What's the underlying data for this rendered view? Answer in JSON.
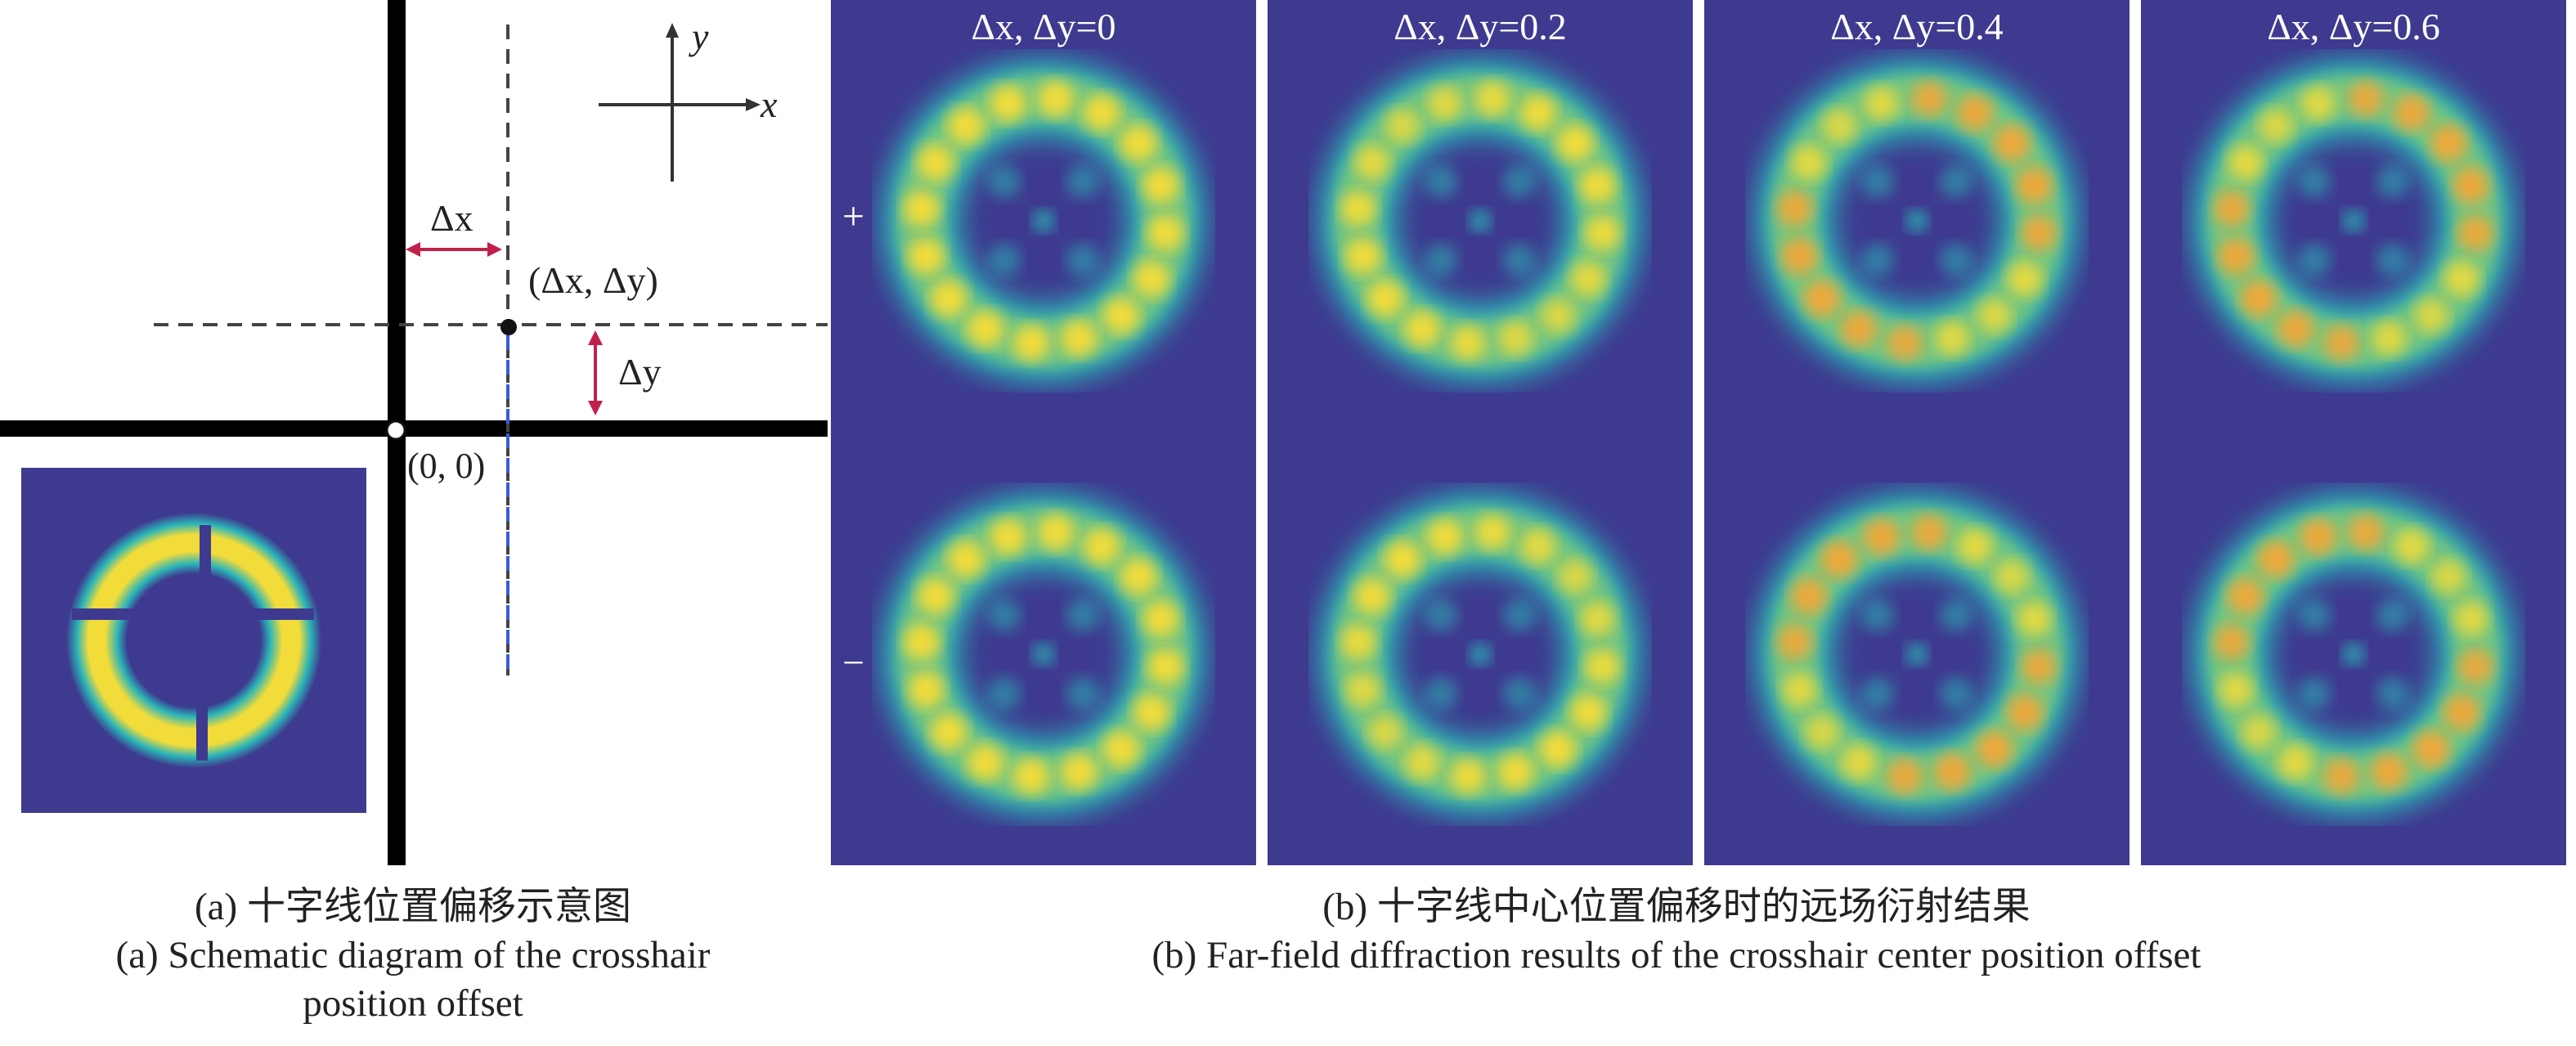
{
  "panel_a": {
    "axis_x": "x",
    "axis_y": "y",
    "delta_x": "Δx",
    "delta_y": "Δy",
    "offset_point": "(Δx, Δy)",
    "origin": "(0, 0)",
    "caption_cn": "(a) 十字线位置偏移示意图",
    "caption_en_line1": "(a) Schematic diagram of the crosshair",
    "caption_en_line2": "position offset"
  },
  "panel_b": {
    "titles": [
      "Δx, Δy=0",
      "Δx, Δy=0.2",
      "Δx, Δy=0.4",
      "Δx, Δy=0.6"
    ],
    "row_plus": "+",
    "row_minus": "−",
    "caption_cn": "(b) 十字线中心位置偏移时的远场衍射结果",
    "caption_en": "(b) Far-field diffraction results of the crosshair center position offset",
    "offsets": [
      0,
      0.2,
      0.4,
      0.6
    ],
    "colors": {
      "background": "#3E3A8F",
      "cyan": "#2BB5B8",
      "green": "#7CC77A",
      "yellow": "#F2DC3A",
      "orange": "#F0A83A"
    }
  }
}
